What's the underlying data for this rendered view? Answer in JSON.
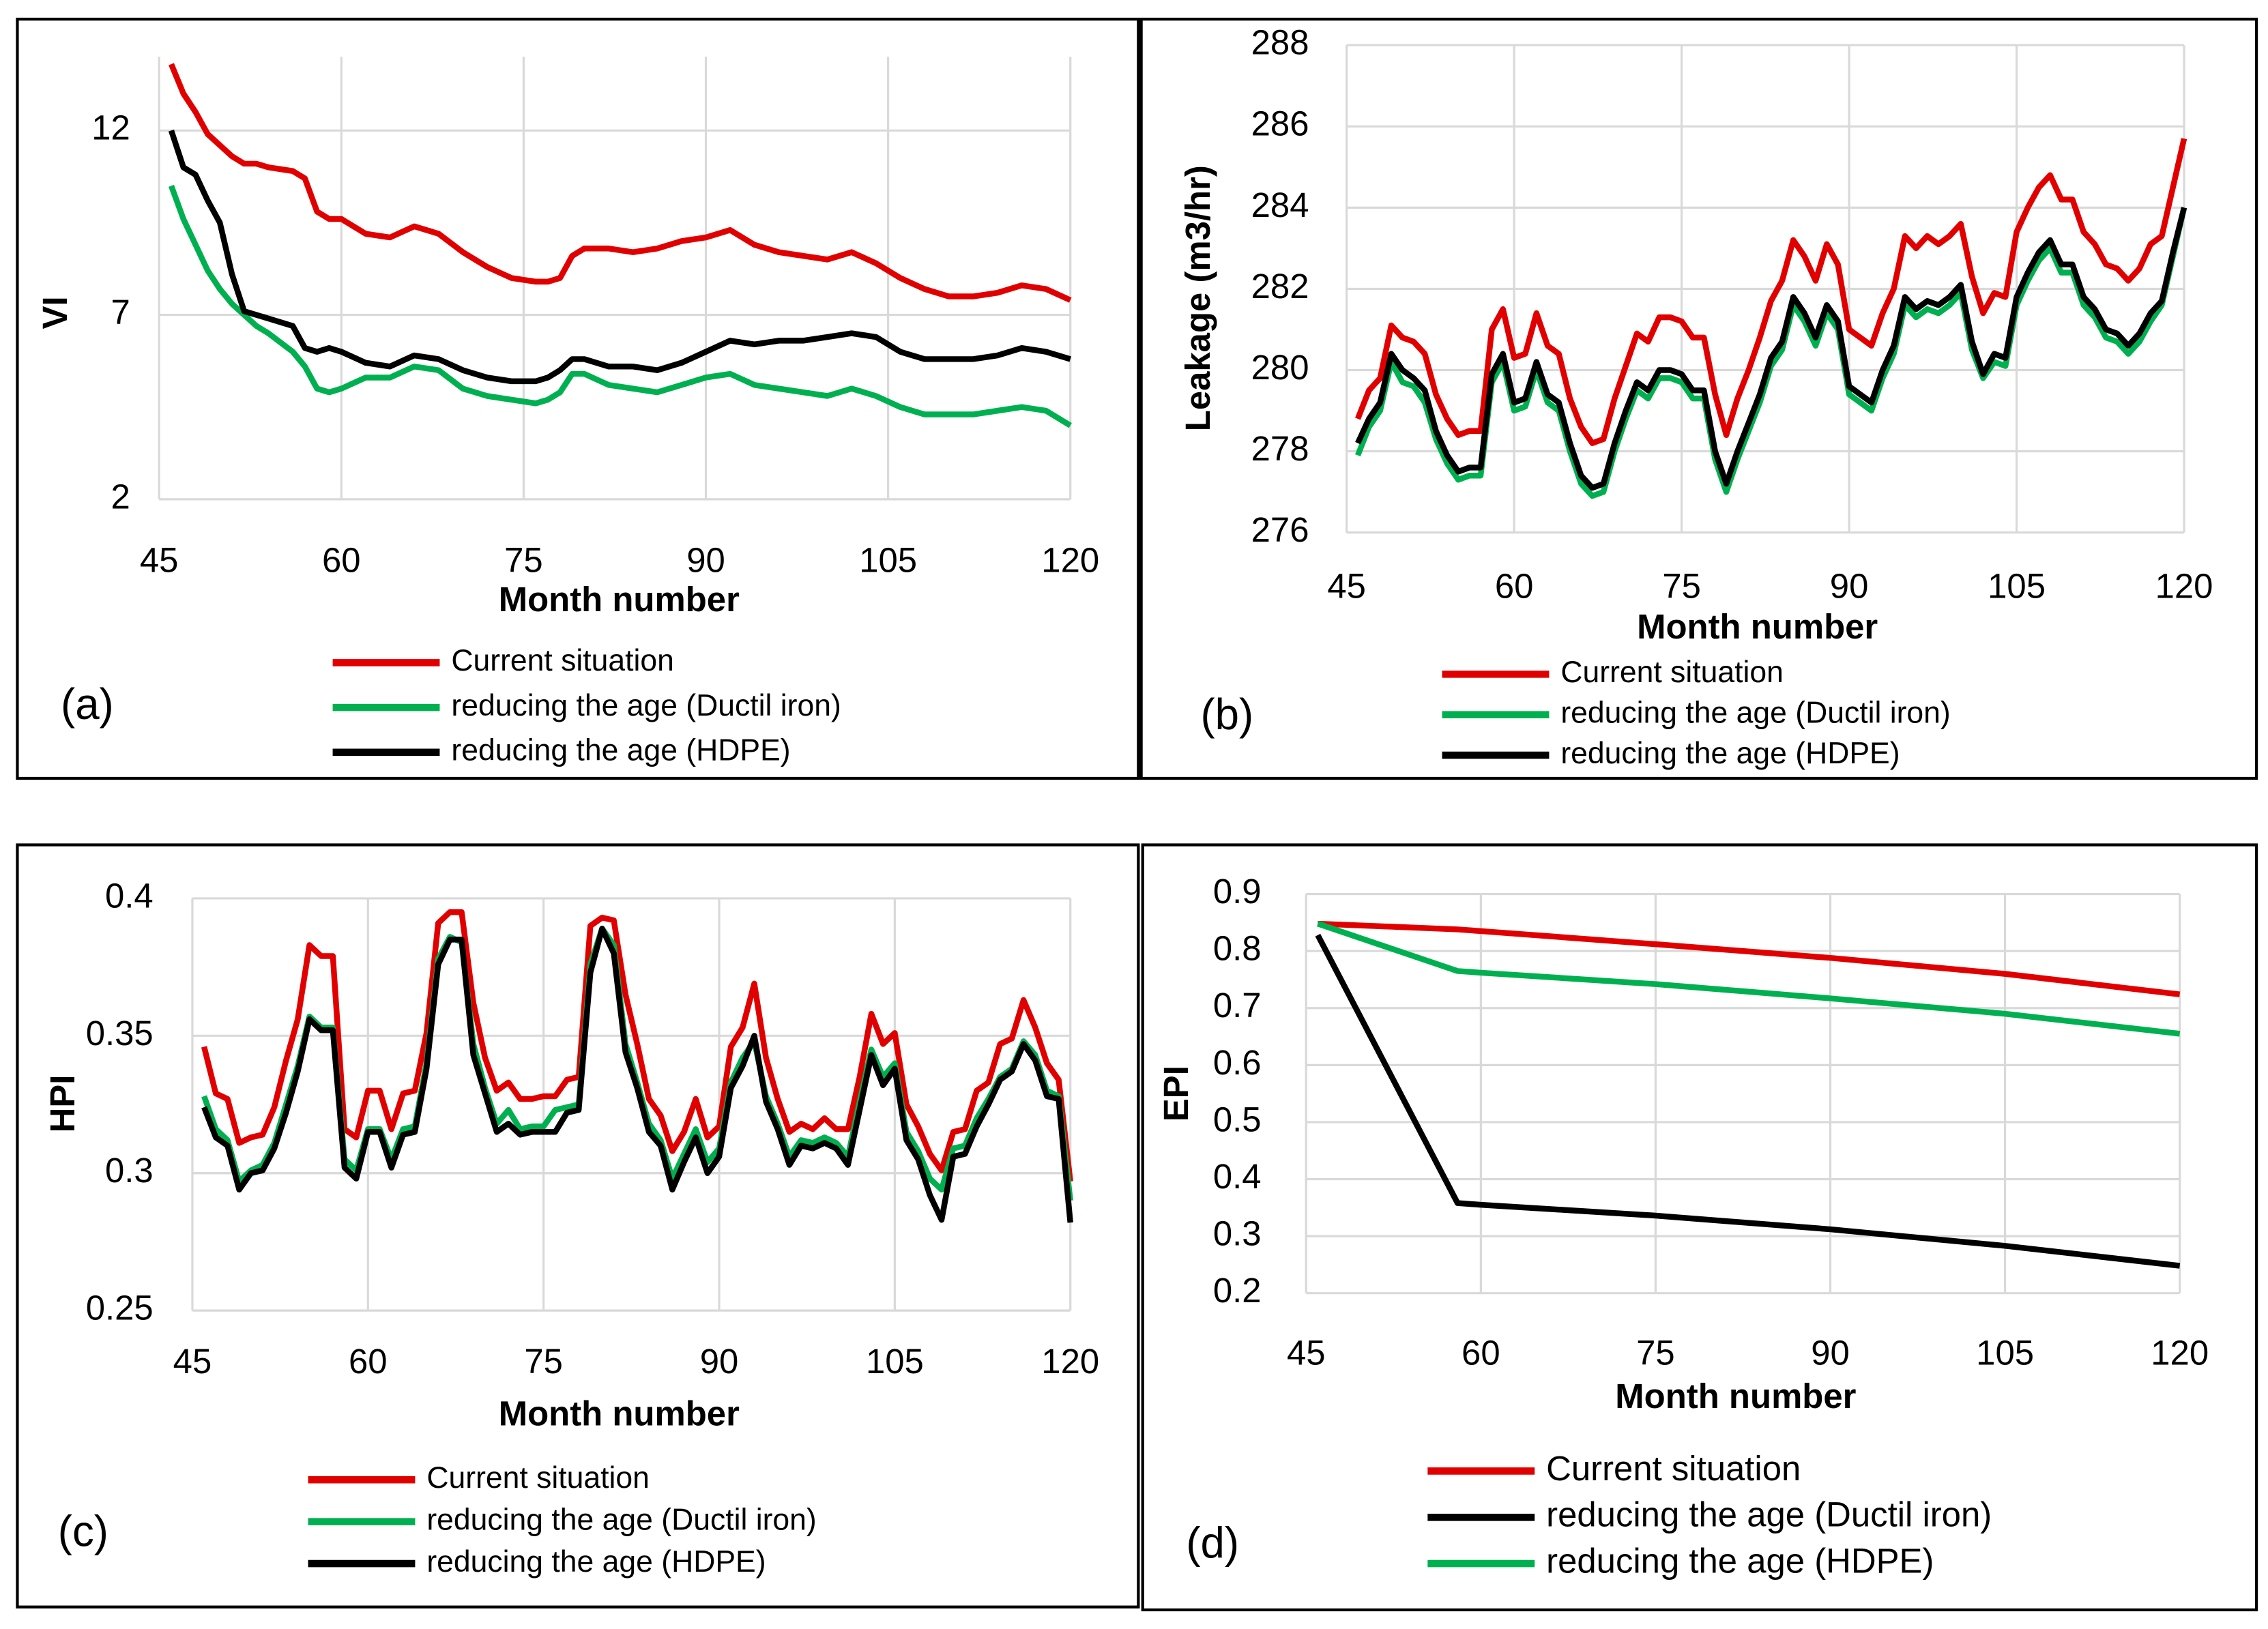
{
  "chart_data": [
    {
      "type": "line",
      "panel": "(a)",
      "y_label": "VI",
      "x_label": "Month number",
      "xlim": [
        45,
        120
      ],
      "xticks": [
        45,
        60,
        75,
        90,
        105,
        120
      ],
      "ylim": [
        2,
        14
      ],
      "yticks": [
        2,
        7,
        12
      ],
      "grid": true,
      "x": [
        46,
        47,
        48,
        49,
        50,
        51,
        52,
        53,
        54,
        56,
        57,
        58,
        59,
        60,
        62,
        64,
        66,
        68,
        70,
        72,
        74,
        76,
        77,
        78,
        79,
        80,
        82,
        84,
        86,
        88,
        90,
        92,
        94,
        96,
        98,
        100,
        102,
        104,
        106,
        108,
        110,
        112,
        114,
        116,
        118,
        120
      ],
      "series": [
        {
          "name": "Current situation",
          "color": "#e00000",
          "values": [
            13.8,
            13.0,
            12.5,
            11.9,
            11.6,
            11.3,
            11.1,
            11.1,
            11.0,
            10.9,
            10.7,
            9.8,
            9.6,
            9.6,
            9.2,
            9.1,
            9.4,
            9.2,
            8.7,
            8.3,
            8.0,
            7.9,
            7.9,
            8.0,
            8.6,
            8.8,
            8.8,
            8.7,
            8.8,
            9.0,
            9.1,
            9.3,
            8.9,
            8.7,
            8.6,
            8.5,
            8.7,
            8.4,
            8.0,
            7.7,
            7.5,
            7.5,
            7.6,
            7.8,
            7.7,
            7.4
          ]
        },
        {
          "name": "reducing the age (Ductil iron)",
          "color": "#00b050",
          "values": [
            10.5,
            9.6,
            8.9,
            8.2,
            7.7,
            7.3,
            7.0,
            6.7,
            6.5,
            6.0,
            5.6,
            5.0,
            4.9,
            5.0,
            5.3,
            5.3,
            5.6,
            5.5,
            5.0,
            4.8,
            4.7,
            4.6,
            4.7,
            4.9,
            5.4,
            5.4,
            5.1,
            5.0,
            4.9,
            5.1,
            5.3,
            5.4,
            5.1,
            5.0,
            4.9,
            4.8,
            5.0,
            4.8,
            4.5,
            4.3,
            4.3,
            4.3,
            4.4,
            4.5,
            4.4,
            4.0
          ]
        },
        {
          "name": "reducing the age (HDPE)",
          "color": "#000000",
          "values": [
            12.0,
            11.0,
            10.8,
            10.1,
            9.5,
            8.1,
            7.1,
            7.0,
            6.9,
            6.7,
            6.1,
            6.0,
            6.1,
            6.0,
            5.7,
            5.6,
            5.9,
            5.8,
            5.5,
            5.3,
            5.2,
            5.2,
            5.3,
            5.5,
            5.8,
            5.8,
            5.6,
            5.6,
            5.5,
            5.7,
            6.0,
            6.3,
            6.2,
            6.3,
            6.3,
            6.4,
            6.5,
            6.4,
            6.0,
            5.8,
            5.8,
            5.8,
            5.9,
            6.1,
            6.0,
            5.8
          ]
        }
      ]
    },
    {
      "type": "line",
      "panel": "(b)",
      "y_label": "Leakage (m3/hr)",
      "x_label": "Month number",
      "xlim": [
        45,
        120
      ],
      "xticks": [
        45,
        60,
        75,
        90,
        105,
        120
      ],
      "ylim": [
        276,
        288
      ],
      "yticks": [
        276,
        278,
        280,
        282,
        284,
        286,
        288
      ],
      "grid": true,
      "x": [
        46,
        47,
        48,
        49,
        50,
        51,
        52,
        53,
        54,
        55,
        56,
        57,
        58,
        59,
        60,
        61,
        62,
        63,
        64,
        65,
        66,
        67,
        68,
        69,
        70,
        71,
        72,
        73,
        74,
        75,
        76,
        77,
        78,
        79,
        80,
        81,
        82,
        83,
        84,
        85,
        86,
        87,
        88,
        89,
        90,
        91,
        92,
        93,
        94,
        95,
        96,
        97,
        98,
        99,
        100,
        101,
        102,
        103,
        104,
        105,
        106,
        107,
        108,
        109,
        110,
        111,
        112,
        113,
        114,
        115,
        116,
        117,
        118,
        119,
        120
      ],
      "series": [
        {
          "name": "Current situation",
          "color": "#e00000",
          "values": [
            278.8,
            279.5,
            279.8,
            281.1,
            280.8,
            280.7,
            280.4,
            279.4,
            278.8,
            278.4,
            278.5,
            278.5,
            281.0,
            281.5,
            280.3,
            280.4,
            281.4,
            280.6,
            280.4,
            279.3,
            278.6,
            278.2,
            278.3,
            279.3,
            280.1,
            280.9,
            280.7,
            281.3,
            281.3,
            281.2,
            280.8,
            280.8,
            279.4,
            278.4,
            279.3,
            280.0,
            280.8,
            281.7,
            282.2,
            283.2,
            282.8,
            282.2,
            283.1,
            282.6,
            281.0,
            280.8,
            280.6,
            281.4,
            282.0,
            283.3,
            283.0,
            283.3,
            283.1,
            283.3,
            283.6,
            282.3,
            281.4,
            281.9,
            281.8,
            283.4,
            284.0,
            284.5,
            284.8,
            284.2,
            284.2,
            283.4,
            283.1,
            282.6,
            282.5,
            282.2,
            282.5,
            283.1,
            283.3,
            284.5,
            285.7
          ]
        },
        {
          "name": "reducing the age (Ductil iron)",
          "color": "#00b050",
          "values": [
            277.9,
            278.6,
            279.0,
            280.2,
            279.7,
            279.6,
            279.2,
            278.3,
            277.7,
            277.3,
            277.4,
            277.4,
            279.7,
            280.2,
            279.0,
            279.1,
            280.0,
            279.2,
            279.0,
            278.0,
            277.2,
            276.9,
            277.0,
            278.0,
            278.8,
            279.5,
            279.3,
            279.8,
            279.8,
            279.7,
            279.3,
            279.3,
            277.8,
            277.0,
            277.8,
            278.5,
            279.2,
            280.1,
            280.5,
            281.6,
            281.2,
            280.6,
            281.4,
            281.0,
            279.4,
            279.2,
            279.0,
            279.8,
            280.4,
            281.6,
            281.3,
            281.5,
            281.4,
            281.6,
            281.9,
            280.5,
            279.8,
            280.2,
            280.1,
            281.6,
            282.2,
            282.7,
            283.0,
            282.4,
            282.4,
            281.6,
            281.3,
            280.8,
            280.7,
            280.4,
            280.7,
            281.2,
            281.6,
            282.8,
            284.0
          ]
        },
        {
          "name": "reducing the age (HDPE)",
          "color": "#000000",
          "values": [
            278.2,
            278.8,
            279.2,
            280.4,
            280.0,
            279.8,
            279.5,
            278.5,
            277.9,
            277.5,
            277.6,
            277.6,
            279.9,
            280.4,
            279.2,
            279.3,
            280.2,
            279.4,
            279.2,
            278.2,
            277.4,
            277.1,
            277.2,
            278.2,
            279.0,
            279.7,
            279.5,
            280.0,
            280.0,
            279.9,
            279.5,
            279.5,
            278.0,
            277.2,
            278.0,
            278.7,
            279.4,
            280.3,
            280.7,
            281.8,
            281.4,
            280.8,
            281.6,
            281.2,
            279.6,
            279.4,
            279.2,
            280.0,
            280.6,
            281.8,
            281.5,
            281.7,
            281.6,
            281.8,
            282.1,
            280.7,
            279.9,
            280.4,
            280.3,
            281.8,
            282.4,
            282.9,
            283.2,
            282.6,
            282.6,
            281.8,
            281.5,
            281.0,
            280.9,
            280.6,
            280.9,
            281.4,
            281.7,
            282.9,
            284.0
          ]
        }
      ]
    },
    {
      "type": "line",
      "panel": "(c)",
      "y_label": "HPI",
      "x_label": "Month number",
      "xlim": [
        45,
        120
      ],
      "xticks": [
        45,
        60,
        75,
        90,
        105,
        120
      ],
      "ylim": [
        0.25,
        0.4
      ],
      "yticks": [
        0.25,
        0.3,
        0.35,
        0.4
      ],
      "grid": true,
      "x": [
        46,
        47,
        48,
        49,
        50,
        51,
        52,
        53,
        54,
        55,
        56,
        57,
        58,
        59,
        60,
        61,
        62,
        63,
        64,
        65,
        66,
        67,
        68,
        69,
        70,
        71,
        72,
        73,
        74,
        75,
        76,
        77,
        78,
        79,
        80,
        81,
        82,
        83,
        84,
        85,
        86,
        87,
        88,
        89,
        90,
        91,
        92,
        93,
        94,
        95,
        96,
        97,
        98,
        99,
        100,
        101,
        102,
        103,
        104,
        105,
        106,
        107,
        108,
        109,
        110,
        111,
        112,
        113,
        114,
        115,
        116,
        117,
        118,
        119,
        120
      ],
      "series": [
        {
          "name": "Current situation",
          "color": "#e00000",
          "values": [
            0.346,
            0.329,
            0.327,
            0.311,
            0.313,
            0.314,
            0.324,
            0.341,
            0.356,
            0.383,
            0.379,
            0.379,
            0.316,
            0.313,
            0.33,
            0.33,
            0.316,
            0.329,
            0.33,
            0.351,
            0.391,
            0.395,
            0.395,
            0.362,
            0.342,
            0.33,
            0.333,
            0.327,
            0.327,
            0.328,
            0.328,
            0.334,
            0.335,
            0.39,
            0.393,
            0.392,
            0.365,
            0.347,
            0.327,
            0.321,
            0.308,
            0.315,
            0.327,
            0.313,
            0.317,
            0.346,
            0.353,
            0.369,
            0.342,
            0.327,
            0.315,
            0.318,
            0.316,
            0.32,
            0.316,
            0.316,
            0.335,
            0.358,
            0.347,
            0.351,
            0.325,
            0.317,
            0.307,
            0.301,
            0.315,
            0.316,
            0.33,
            0.333,
            0.347,
            0.349,
            0.363,
            0.353,
            0.34,
            0.334,
            0.297
          ]
        },
        {
          "name": "reducing the age (Ductil iron)",
          "color": "#00b050",
          "values": [
            0.328,
            0.316,
            0.312,
            0.297,
            0.301,
            0.303,
            0.311,
            0.325,
            0.339,
            0.357,
            0.353,
            0.353,
            0.305,
            0.301,
            0.316,
            0.316,
            0.305,
            0.316,
            0.317,
            0.34,
            0.378,
            0.386,
            0.384,
            0.347,
            0.331,
            0.318,
            0.323,
            0.316,
            0.317,
            0.317,
            0.323,
            0.324,
            0.325,
            0.376,
            0.389,
            0.383,
            0.347,
            0.333,
            0.318,
            0.312,
            0.298,
            0.307,
            0.316,
            0.304,
            0.309,
            0.333,
            0.342,
            0.348,
            0.328,
            0.318,
            0.306,
            0.312,
            0.311,
            0.313,
            0.311,
            0.306,
            0.326,
            0.345,
            0.335,
            0.34,
            0.315,
            0.308,
            0.298,
            0.294,
            0.309,
            0.31,
            0.32,
            0.327,
            0.335,
            0.338,
            0.348,
            0.343,
            0.33,
            0.328,
            0.29
          ]
        },
        {
          "name": "reducing the age (HDPE)",
          "color": "#000000",
          "values": [
            0.324,
            0.313,
            0.31,
            0.294,
            0.3,
            0.301,
            0.309,
            0.322,
            0.337,
            0.356,
            0.352,
            0.352,
            0.302,
            0.298,
            0.315,
            0.315,
            0.302,
            0.314,
            0.315,
            0.338,
            0.376,
            0.385,
            0.385,
            0.343,
            0.329,
            0.315,
            0.318,
            0.314,
            0.315,
            0.315,
            0.315,
            0.322,
            0.323,
            0.373,
            0.389,
            0.38,
            0.344,
            0.331,
            0.315,
            0.31,
            0.294,
            0.304,
            0.313,
            0.3,
            0.306,
            0.331,
            0.339,
            0.35,
            0.326,
            0.316,
            0.303,
            0.31,
            0.309,
            0.311,
            0.309,
            0.303,
            0.323,
            0.343,
            0.332,
            0.338,
            0.312,
            0.305,
            0.292,
            0.283,
            0.306,
            0.307,
            0.317,
            0.325,
            0.334,
            0.337,
            0.347,
            0.341,
            0.328,
            0.327,
            0.282
          ]
        }
      ]
    },
    {
      "type": "line",
      "panel": "(d)",
      "y_label": "EPI",
      "x_label": "Month number",
      "xlim": [
        45,
        120
      ],
      "xticks": [
        45,
        60,
        75,
        90,
        105,
        120
      ],
      "ylim": [
        0.2,
        0.9
      ],
      "yticks": [
        0.2,
        0.3,
        0.4,
        0.5,
        0.6,
        0.7,
        0.8,
        0.9
      ],
      "grid": true,
      "x": [
        46,
        58,
        60,
        75,
        90,
        105,
        120
      ],
      "series": [
        {
          "name": "Current situation",
          "color": "#e00000",
          "values": [
            0.848,
            0.838,
            0.835,
            0.812,
            0.788,
            0.76,
            0.724
          ]
        },
        {
          "name": "reducing the age (Ductil iron)",
          "color": "#000000",
          "values": [
            0.828,
            0.358,
            0.355,
            0.336,
            0.312,
            0.283,
            0.248
          ]
        },
        {
          "name": "reducing the age (HDPE)",
          "color": "#00b050",
          "values": [
            0.848,
            0.765,
            0.762,
            0.742,
            0.717,
            0.69,
            0.655
          ]
        }
      ]
    }
  ]
}
